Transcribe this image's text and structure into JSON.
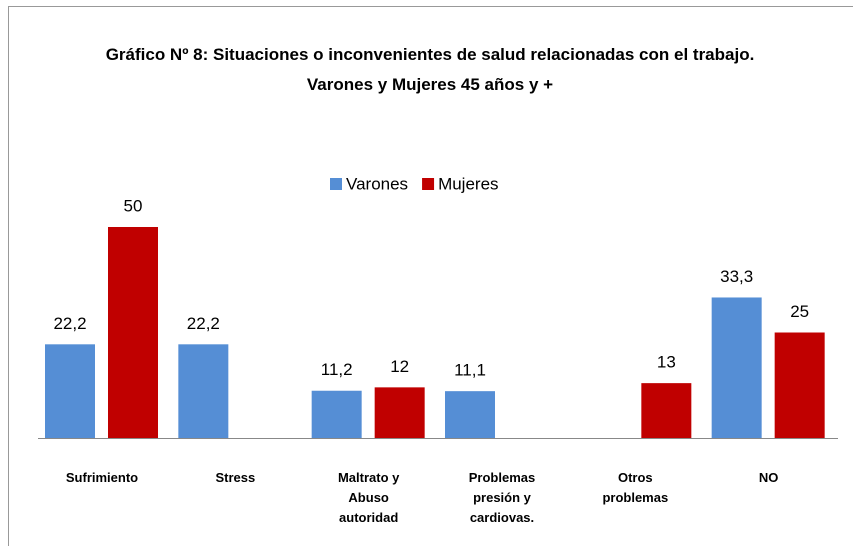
{
  "chart_data": {
    "type": "bar",
    "title": "Gráfico Nº 8: Situaciones o inconvenientes de salud relacionadas con el trabajo. Varones y Mujeres 45 años y +",
    "categories": [
      "Sufrimiento",
      "Stress",
      "Maltrato y Abuso autoridad",
      "Problemas presión y cardiovas.",
      "Otros problemas",
      "NO"
    ],
    "series": [
      {
        "name": "Varones",
        "color": "#558ed5",
        "values": [
          22.2,
          22.2,
          11.2,
          11.1,
          null,
          33.3
        ],
        "value_labels": [
          "22,2",
          "22,2",
          "11,2",
          "11,1",
          null,
          "33,3"
        ]
      },
      {
        "name": "Mujeres",
        "color": "#c00000",
        "values": [
          50,
          null,
          12,
          null,
          13,
          25
        ]
      }
    ],
    "legend": "top"
  }
}
